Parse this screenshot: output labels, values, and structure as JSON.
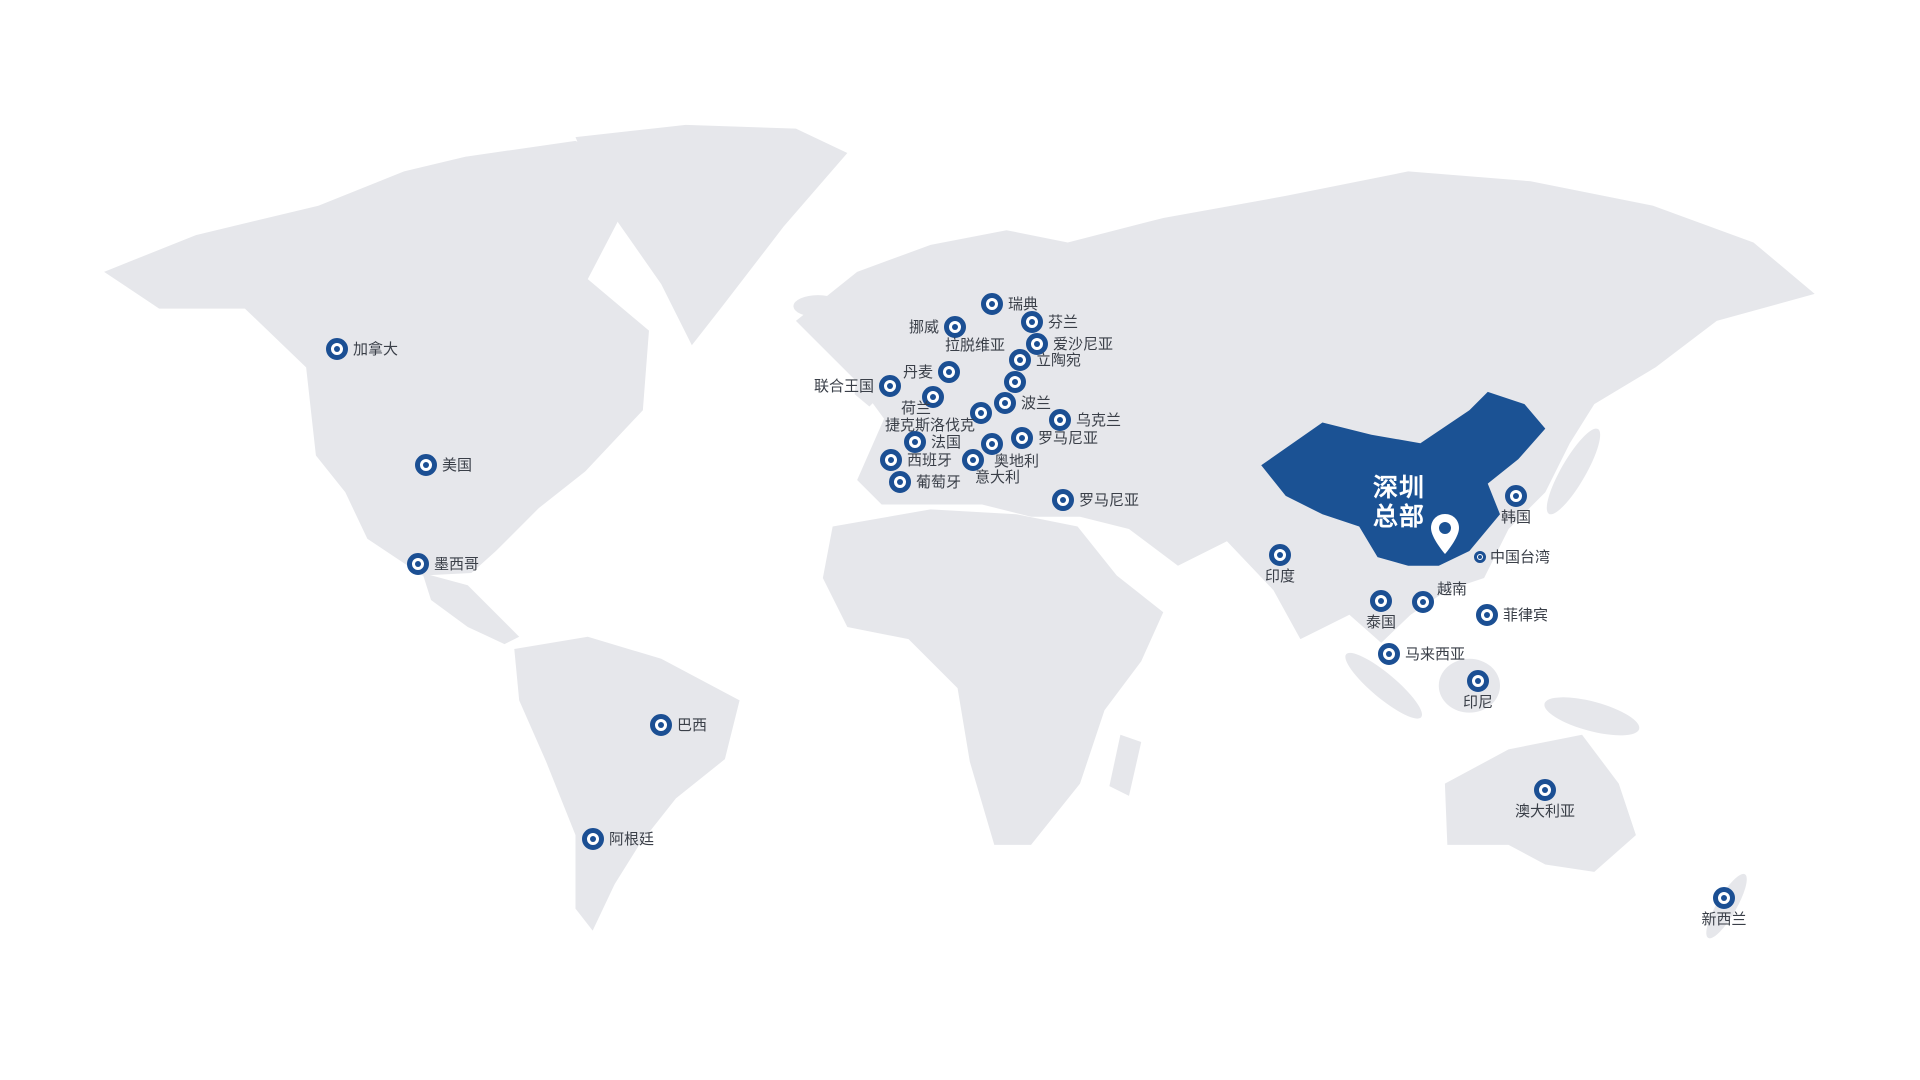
{
  "colors": {
    "land": "#e6e7eb",
    "china": "#1b5294",
    "marker": "#1b4f93",
    "label": "#3a3f48"
  },
  "headquarters": {
    "line1": "深圳",
    "line2": "总部",
    "icon": "map-pin-icon"
  },
  "markers": [
    {
      "label": "加拿大",
      "placement": "right"
    },
    {
      "label": "美国",
      "placement": "right"
    },
    {
      "label": "墨西哥",
      "placement": "right"
    },
    {
      "label": "巴西",
      "placement": "right"
    },
    {
      "label": "阿根廷",
      "placement": "right"
    },
    {
      "label": "瑞典",
      "placement": "right"
    },
    {
      "label": "挪威",
      "placement": "left"
    },
    {
      "label": "芬兰",
      "placement": "right"
    },
    {
      "label": "爱沙尼亚",
      "placement": "right"
    },
    {
      "label": "拉脱维亚",
      "placement": "custom"
    },
    {
      "label": "立陶宛",
      "placement": "right"
    },
    {
      "label": "",
      "placement": "none"
    },
    {
      "label": "丹麦",
      "placement": "left"
    },
    {
      "label": "联合王国",
      "placement": "left"
    },
    {
      "label": "荷兰",
      "placement": "below-left"
    },
    {
      "label": "波兰",
      "placement": "right"
    },
    {
      "label": "捷克斯洛伐克",
      "placement": "left-below"
    },
    {
      "label": "乌克兰",
      "placement": "right"
    },
    {
      "label": "法国",
      "placement": "right"
    },
    {
      "label": "罗马尼亚",
      "placement": "right"
    },
    {
      "label": "奥地利",
      "placement": "below-right"
    },
    {
      "label": "西班牙",
      "placement": "right"
    },
    {
      "label": "意大利",
      "placement": "below-right"
    },
    {
      "label": "葡萄牙",
      "placement": "right"
    },
    {
      "label": "罗马尼亚",
      "placement": "right"
    },
    {
      "label": "印度",
      "placement": "below"
    },
    {
      "label": "韩国",
      "placement": "below"
    },
    {
      "label": "中国台湾",
      "placement": "right",
      "small": true
    },
    {
      "label": "越南",
      "placement": "above-right"
    },
    {
      "label": "泰国",
      "placement": "below"
    },
    {
      "label": "菲律宾",
      "placement": "right"
    },
    {
      "label": "马来西亚",
      "placement": "right"
    },
    {
      "label": "印尼",
      "placement": "below"
    },
    {
      "label": "澳大利亚",
      "placement": "below"
    },
    {
      "label": "新西兰",
      "placement": "below"
    }
  ]
}
